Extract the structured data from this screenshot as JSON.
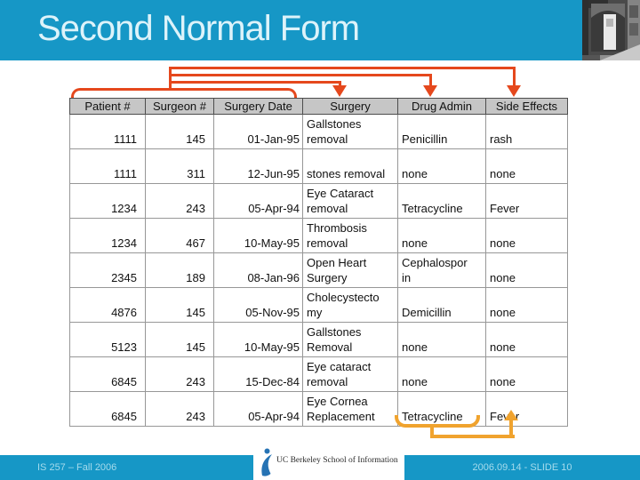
{
  "slide": {
    "title": "Second Normal Form"
  },
  "table": {
    "headers": [
      "Patient #",
      "Surgeon #",
      "Surgery Date",
      "Surgery",
      "Drug Admin",
      "Side Effects"
    ],
    "rows": [
      [
        "1111",
        "145",
        "01-Jan-95",
        "Gallstones removal",
        "Penicillin",
        "rash"
      ],
      [
        "1111",
        "311",
        "12-Jun-95",
        "stones removal",
        "none",
        "none"
      ],
      [
        "1234",
        "243",
        "05-Apr-94",
        "Eye Cataract removal",
        "Tetracycline",
        "Fever"
      ],
      [
        "1234",
        "467",
        "10-May-95",
        "Thrombosis removal",
        "none",
        "none"
      ],
      [
        "2345",
        "189",
        "08-Jan-96",
        "Open Heart Surgery",
        "Cephalosporin",
        "none"
      ],
      [
        "4876",
        "145",
        "05-Nov-95",
        "Cholecystectomy",
        "Demicillin",
        "none"
      ],
      [
        "5123",
        "145",
        "10-May-95",
        "Gallstones Removal",
        "none",
        "none"
      ],
      [
        "6845",
        "243",
        "15-Dec-84",
        "Eye cataract removal",
        "none",
        "none"
      ],
      [
        "6845",
        "243",
        "05-Apr-94",
        "Eye Cornea Replacement",
        "Tetracycline",
        "Fever"
      ]
    ]
  },
  "annotations": {
    "composite_key_columns": [
      "Patient #",
      "Surgeon #",
      "Surgery Date"
    ],
    "key_dependency_arrows_to": [
      "Surgery",
      "Drug Admin",
      "Side Effects"
    ],
    "bottom_dependency": {
      "from": "Tetracycline",
      "to": "Fever"
    }
  },
  "footer": {
    "course": "IS 257 – Fall 2006",
    "logo_text": "UC Berkeley School of Information",
    "slide_info": "2006.09.14 - SLIDE 10"
  },
  "icons": {
    "building_photo": "grayscale-building-facade",
    "berkeley_figure": "blue-abstract-dancer"
  },
  "colors": {
    "header_bar": "#1697c6",
    "title_text": "#ddf3fa",
    "arrow_red": "#e5481d",
    "arrow_amber": "#f0a32e",
    "table_header_bg": "#c6c6c6",
    "footer_text": "#a5dbec"
  }
}
